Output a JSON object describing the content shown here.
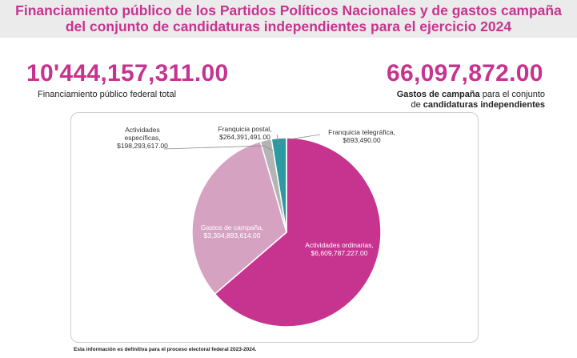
{
  "header": {
    "title_line1": "Financiamiento público de los Partidos Políticos Nacionales y de gastos campaña",
    "title_line2": "del conjunto de candidaturas independientes para el ejercicio 2024"
  },
  "totals": {
    "public_amount": "10'444,157,311.00",
    "public_label": "Financiamiento público federal total",
    "independent_amount": "66,097,872.00",
    "independent_label_bold1": "Gastos de campaña",
    "independent_label_mid": " para el conjunto",
    "independent_label_line2_pre": "de ",
    "independent_label_bold2": "candidaturas independientes"
  },
  "chart_data": {
    "type": "pie",
    "title": "",
    "slices": [
      {
        "name": "Actividades ordinarias",
        "value": 6609787227,
        "value_label": "$6,609,787,227.00",
        "color": "#c6348f"
      },
      {
        "name": "Gastos de campaña",
        "value": 3304893614,
        "value_label": "$3,304,893,614.00",
        "color": "#d6a2c2"
      },
      {
        "name": "Actividades específicas",
        "value": 198293617,
        "value_label": "$198,293,617.00",
        "color": "#b4b4b4"
      },
      {
        "name": "Franquicia postal",
        "value": 264391491,
        "value_label": "$264,391,491.00",
        "color": "#2c9aa0"
      },
      {
        "name": "Franquicia telegráfica",
        "value": 693490,
        "value_label": "$693,490.00",
        "color": "#9c9c9c"
      }
    ],
    "start_angle": "12 o'clock",
    "direction": "clockwise"
  },
  "footer": {
    "note": "Esta información es definitiva para el proceso electoral federal 2023-2024."
  }
}
